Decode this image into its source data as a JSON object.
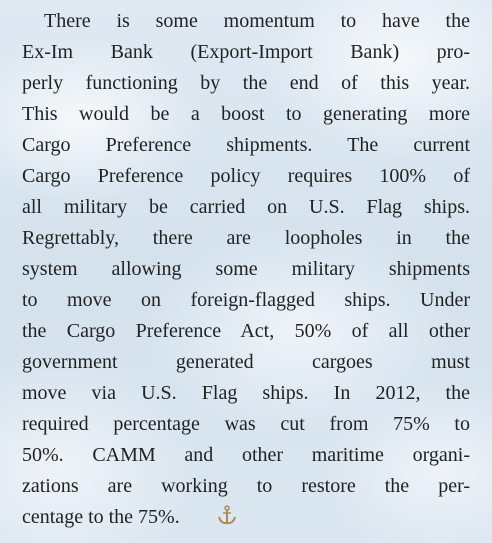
{
  "paragraph": {
    "lines": [
      "There is some momentum to have the",
      "Ex-Im Bank (Export-Import Bank) pro-",
      "perly functioning by the end of this year.",
      "This would be a boost to generating more",
      "Cargo Preference shipments. The current",
      "Cargo Preference policy requires 100% of",
      "all military be carried on U.S. Flag ships.",
      "Regrettably, there are loopholes in the",
      "system allowing some military shipments",
      "to move on foreign-flagged ships. Under",
      "the Cargo Preference Act, 50% of all other",
      "government generated cargoes must",
      "move via U.S. Flag ships. In 2012, the",
      "required percentage was cut from 75% to",
      "50%. CAMM and other maritime organi-",
      "zations are working to restore the per-",
      "centage to the 75%."
    ]
  }
}
